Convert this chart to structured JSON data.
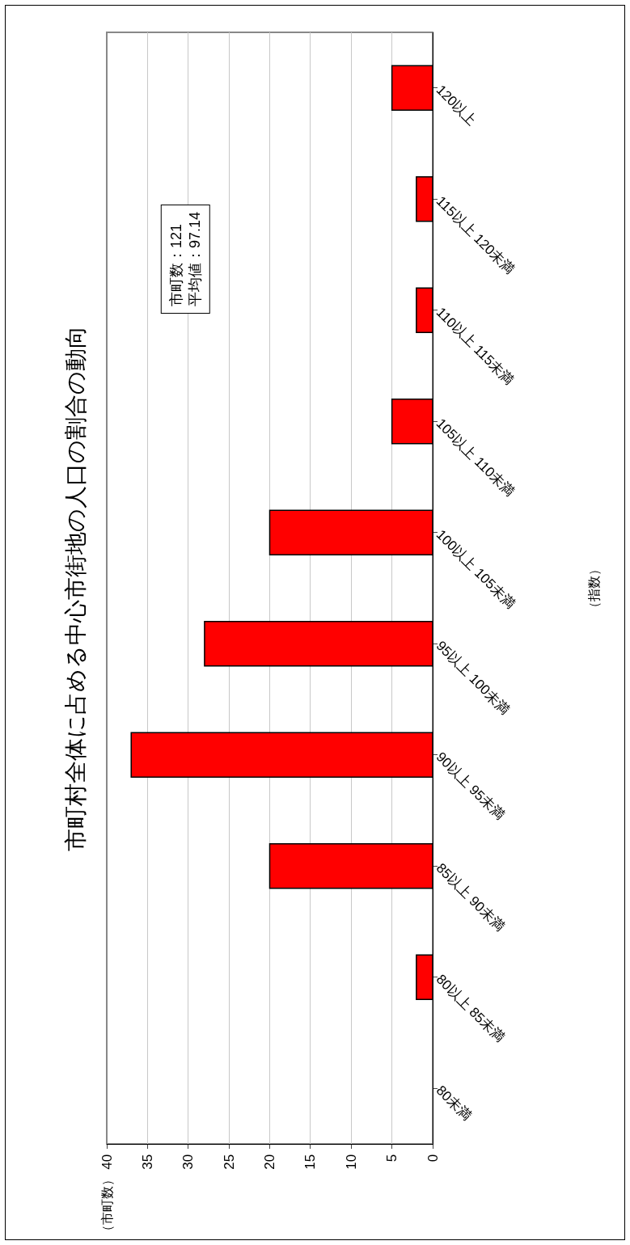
{
  "chart_data": {
    "type": "bar",
    "orientation": "horizontal",
    "title": "市町村全体に占める中心市街地の人口の割合の動向",
    "categories": [
      "120以上",
      "115以上 120未満",
      "110以上 115未満",
      "105以上 110未満",
      "100以上 105未満",
      "95以上 100未満",
      "90以上 95未満",
      "85以上 90未満",
      "80以上 85未満",
      "80未満"
    ],
    "values": [
      5,
      2,
      2,
      5,
      20,
      28,
      37,
      20,
      2,
      0
    ],
    "color": "#ff0000",
    "xlim": [
      40,
      0
    ],
    "xticks": [
      40,
      35,
      30,
      25,
      20,
      15,
      10,
      5,
      0
    ],
    "grid": "x",
    "annotations": [
      "市町数：121\n平均値：97.14",
      "（市町数）",
      "（指数）"
    ]
  }
}
